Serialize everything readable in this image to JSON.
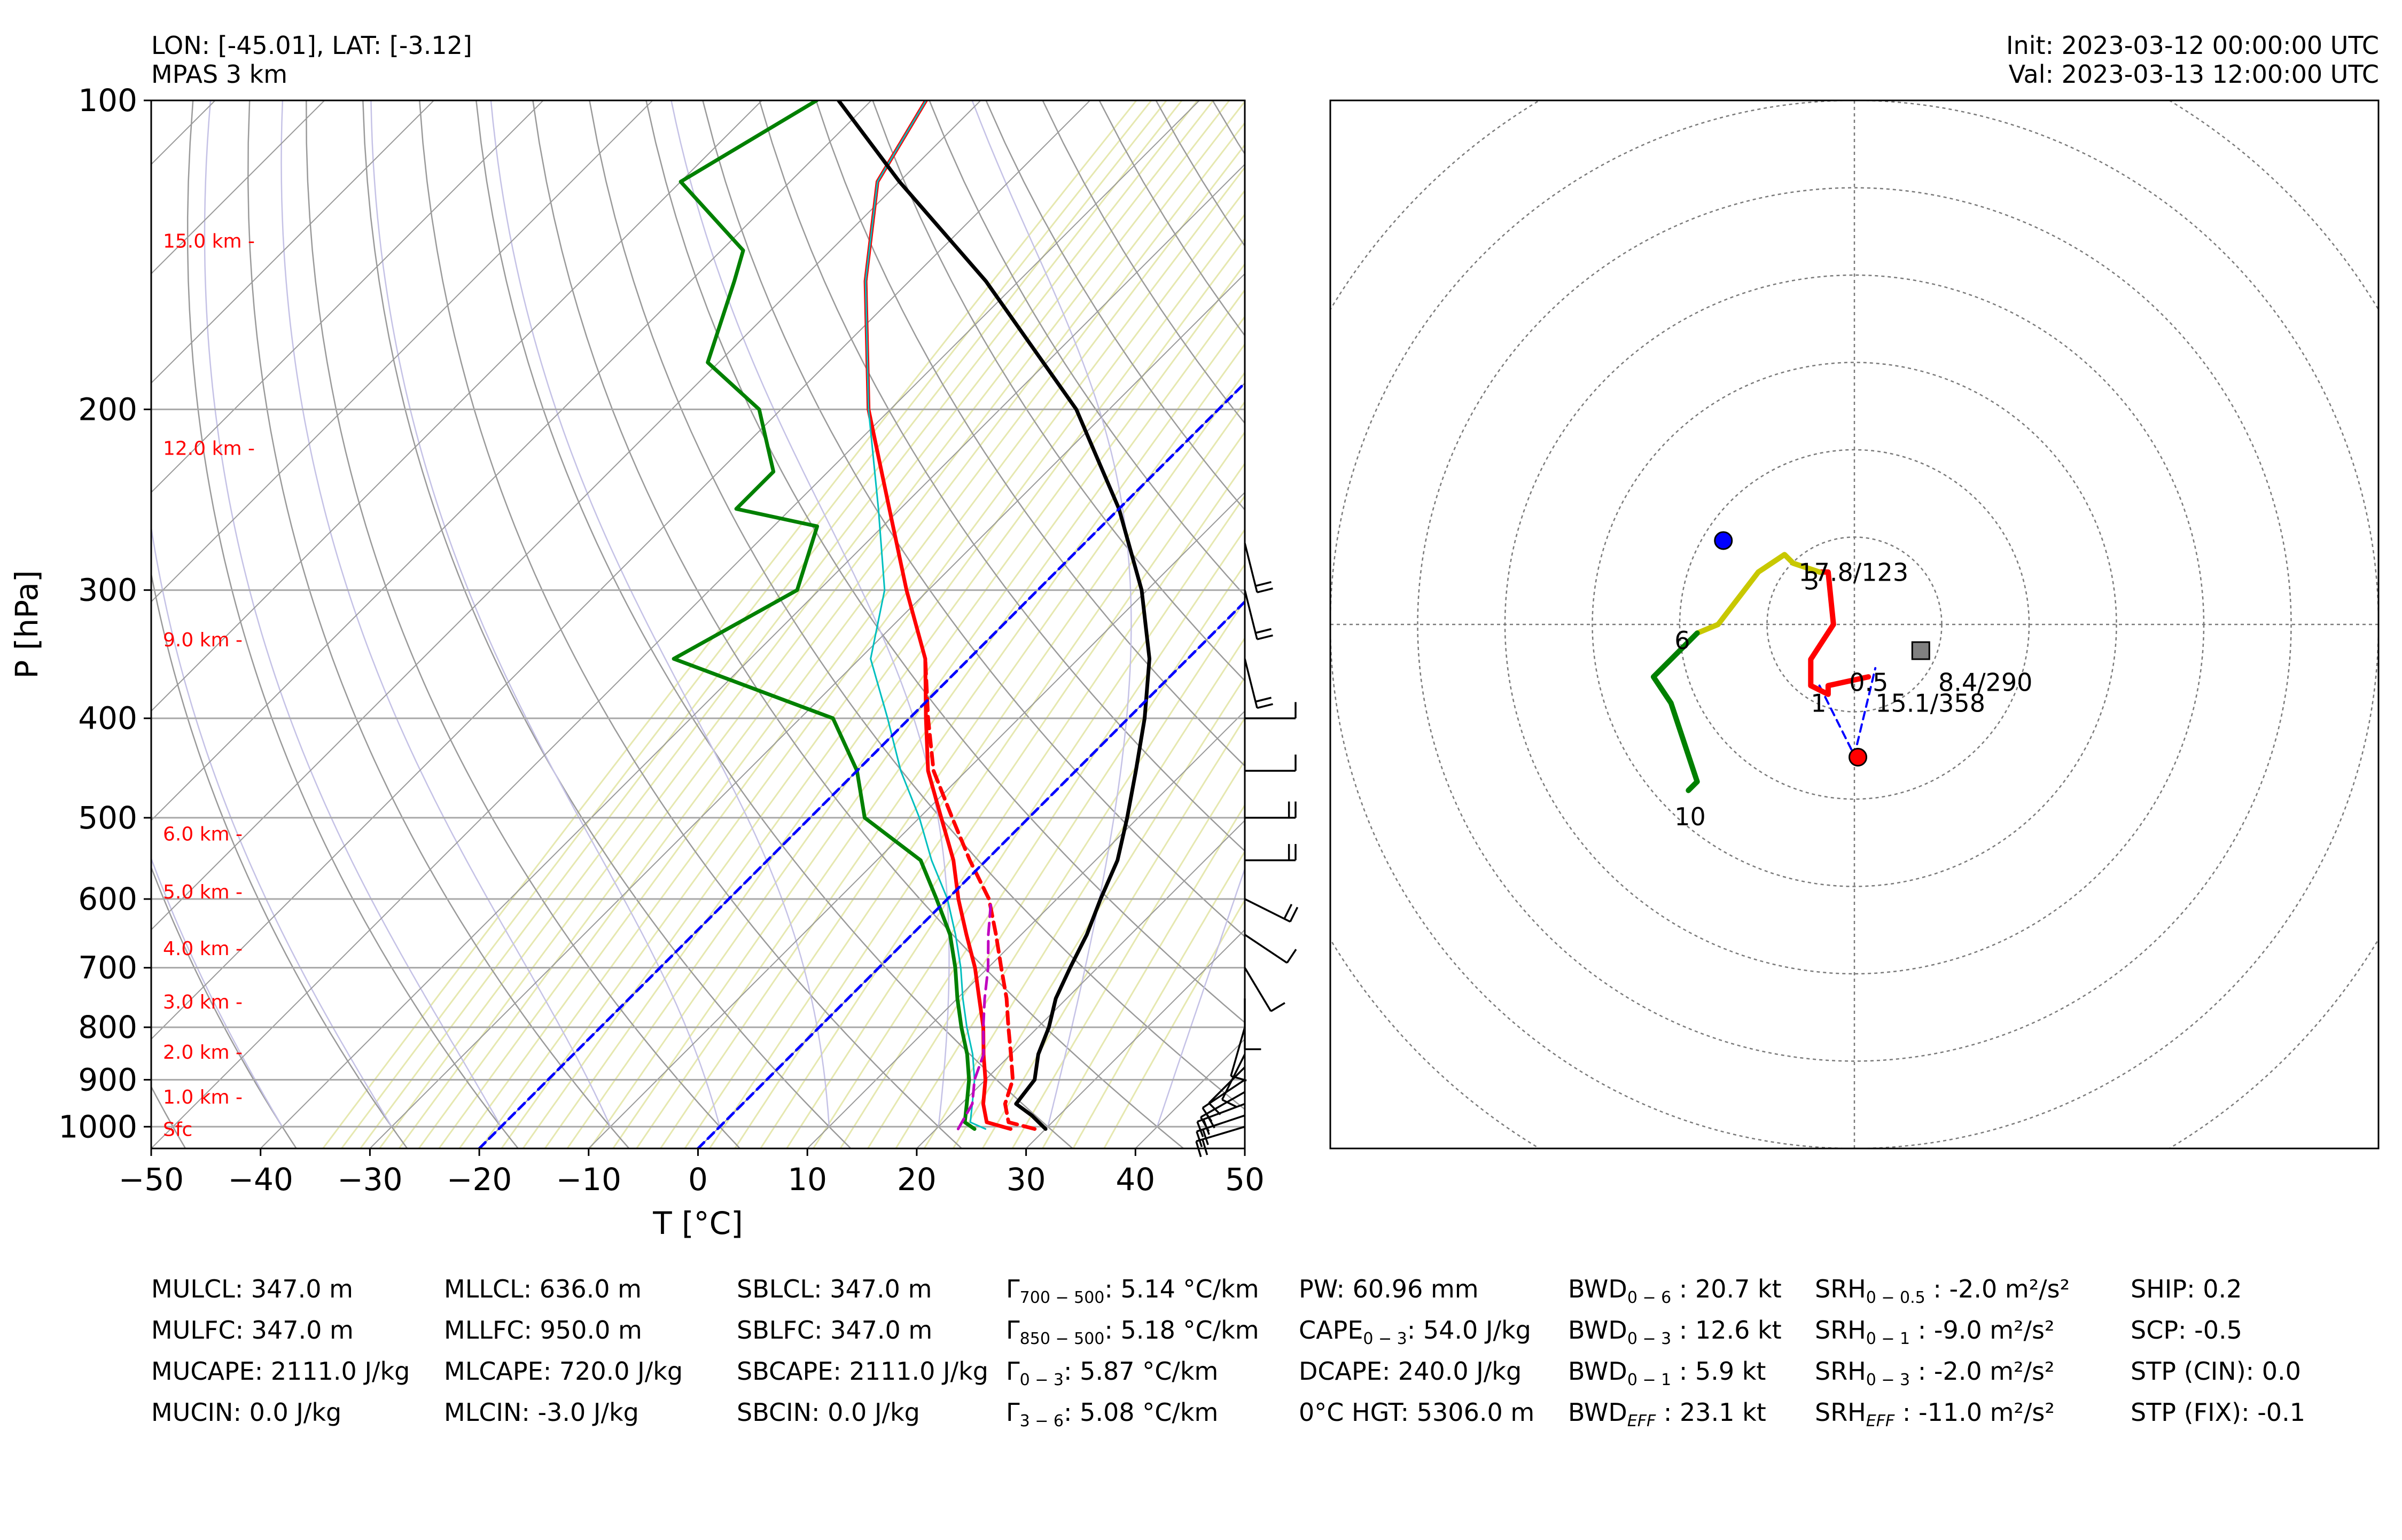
{
  "header": {
    "location": "LON: [-45.01], LAT: [-3.12]",
    "model": "MPAS 3 km",
    "init": "Init: 2023-03-12 00:00:00 UTC",
    "valid": "Val: 2023-03-13 12:00:00 UTC"
  },
  "chart_data": [
    {
      "type": "line",
      "subtype": "skew-T log-P",
      "xlabel": "T [°C]",
      "ylabel": "P [hPa]",
      "xlim": [
        -50,
        50
      ],
      "ylim": [
        1050,
        100
      ],
      "y_scale": "log",
      "x_ticks": [
        "−50",
        "−40",
        "−30",
        "−20",
        "−10",
        "0",
        "10",
        "20",
        "30",
        "40",
        "50"
      ],
      "y_ticks": [
        "100",
        "200",
        "300",
        "400",
        "500",
        "600",
        "700",
        "800",
        "900",
        "1000"
      ],
      "height_labels": [
        {
          "label": "15.0 km -",
          "p": 137
        },
        {
          "label": "12.0 km -",
          "p": 218
        },
        {
          "label": "9.0 km -",
          "p": 335
        },
        {
          "label": "6.0 km -",
          "p": 518
        },
        {
          "label": "5.0 km -",
          "p": 590
        },
        {
          "label": "4.0 km -",
          "p": 670
        },
        {
          "label": "3.0 km -",
          "p": 755
        },
        {
          "label": "2.0 km -",
          "p": 845
        },
        {
          "label": "1.0 km -",
          "p": 935
        },
        {
          "label": "Sfc",
          "p": 1005
        }
      ],
      "grid": true,
      "series": [
        {
          "key": "temperature",
          "color": "#ff0000",
          "points": [
            [
              26.8,
              1005
            ],
            [
              24,
              990
            ],
            [
              22,
              950
            ],
            [
              20,
              900
            ],
            [
              17.5,
              850
            ],
            [
              15,
              800
            ],
            [
              12,
              750
            ],
            [
              8.8,
              700
            ],
            [
              5,
              650
            ],
            [
              1,
              600
            ],
            [
              -3,
              550
            ],
            [
              -8,
              500
            ],
            [
              -13.5,
              450
            ],
            [
              -18.5,
              400
            ],
            [
              -24,
              350
            ],
            [
              -32,
              300
            ],
            [
              -41,
              250
            ],
            [
              -52,
              200
            ],
            [
              -64,
              150
            ],
            [
              -72,
              120
            ],
            [
              -75,
              100
            ]
          ]
        },
        {
          "key": "dewpoint",
          "color": "#008000",
          "points": [
            [
              23.5,
              1005
            ],
            [
              22,
              990
            ],
            [
              20.5,
              950
            ],
            [
              18.5,
              900
            ],
            [
              16,
              850
            ],
            [
              13,
              800
            ],
            [
              10,
              750
            ],
            [
              7,
              700
            ],
            [
              3.5,
              650
            ],
            [
              -1,
              600
            ],
            [
              -6,
              550
            ],
            [
              -15,
              500
            ],
            [
              -20,
              450
            ],
            [
              -27,
              400
            ],
            [
              -47,
              350
            ],
            [
              -42,
              300
            ],
            [
              -46,
              260
            ],
            [
              -55,
              250
            ],
            [
              -55,
              230
            ],
            [
              -62,
              200
            ],
            [
              -71,
              180
            ],
            [
              -76,
              150
            ],
            [
              -78,
              140
            ],
            [
              -90,
              120
            ],
            [
              -85,
              100
            ]
          ]
        },
        {
          "key": "virtual_temperature",
          "color": "#ff0000",
          "dashed": true,
          "points": [
            [
              29,
              1005
            ],
            [
              26,
              990
            ],
            [
              24,
              950
            ],
            [
              22.5,
              900
            ],
            [
              20,
              850
            ],
            [
              17.3,
              800
            ],
            [
              14.5,
              750
            ],
            [
              11.2,
              700
            ],
            [
              7.7,
              650
            ],
            [
              3.8,
              600
            ],
            [
              -1.5,
              550
            ],
            [
              -7,
              500
            ],
            [
              -13,
              450
            ],
            [
              -18.3,
              400
            ],
            [
              -24,
              350
            ]
          ]
        },
        {
          "key": "wetbulb",
          "color": "#00bfbf",
          "points": [
            [
              24.5,
              1005
            ],
            [
              22.5,
              990
            ],
            [
              21,
              950
            ],
            [
              19,
              900
            ],
            [
              16.5,
              850
            ],
            [
              13.5,
              800
            ],
            [
              10.5,
              750
            ],
            [
              7.5,
              700
            ],
            [
              4,
              650
            ],
            [
              0,
              600
            ],
            [
              -5,
              550
            ],
            [
              -10,
              500
            ],
            [
              -16,
              450
            ],
            [
              -22,
              400
            ],
            [
              -29,
              350
            ],
            [
              -34,
              300
            ],
            [
              -42,
              250
            ],
            [
              -52,
              200
            ],
            [
              -64,
              150
            ],
            [
              -72,
              120
            ],
            [
              -75,
              100
            ]
          ]
        },
        {
          "key": "dcape_parcel",
          "color": "#bf00bf",
          "dashed": true,
          "points": [
            [
              22,
              1005
            ],
            [
              21,
              950
            ],
            [
              19,
              900
            ],
            [
              17.5,
              850
            ],
            [
              15,
              800
            ],
            [
              12.5,
              750
            ],
            [
              10,
              700
            ],
            [
              7,
              650
            ],
            [
              4,
              600
            ]
          ]
        },
        {
          "key": "surface_parcel",
          "color": "#000000",
          "points": [
            [
              30,
              1005
            ],
            [
              27.5,
              975
            ],
            [
              25,
              950
            ],
            [
              24.5,
              900
            ],
            [
              22.5,
              850
            ],
            [
              21,
              800
            ],
            [
              19,
              750
            ],
            [
              17.5,
              700
            ],
            [
              16,
              650
            ],
            [
              14,
              600
            ],
            [
              12,
              550
            ],
            [
              9,
              500
            ],
            [
              5.5,
              450
            ],
            [
              1.5,
              400
            ],
            [
              -3.5,
              350
            ],
            [
              -10.5,
              300
            ],
            [
              -20,
              250
            ],
            [
              -33,
              200
            ],
            [
              -53,
              150
            ],
            [
              -70,
              120
            ],
            [
              -83,
              100
            ]
          ]
        },
        {
          "key": "isotherm_0C",
          "color": "#0000ff",
          "dashed": true,
          "isotherm": 0
        },
        {
          "key": "isotherm_m20C",
          "color": "#0000ff",
          "dashed": true,
          "isotherm": -20
        }
      ],
      "wind_barbs": [
        {
          "p": 1000,
          "u": -10,
          "v": 3
        },
        {
          "p": 975,
          "u": -9,
          "v": 3
        },
        {
          "p": 950,
          "u": -8,
          "v": 3
        },
        {
          "p": 925,
          "u": -7,
          "v": 4
        },
        {
          "p": 900,
          "u": -6,
          "v": 4
        },
        {
          "p": 875,
          "u": -5,
          "v": 5
        },
        {
          "p": 850,
          "u": -3,
          "v": 6
        },
        {
          "p": 800,
          "u": -2,
          "v": 7
        },
        {
          "p": 750,
          "u": 0,
          "v": 6
        },
        {
          "p": 700,
          "u": 3,
          "v": 5
        },
        {
          "p": 650,
          "u": 6,
          "v": 4
        },
        {
          "p": 600,
          "u": 8,
          "v": 4
        },
        {
          "p": 550,
          "u": 10,
          "v": 0
        },
        {
          "p": 500,
          "u": 10,
          "v": 0
        },
        {
          "p": 450,
          "u": 7,
          "v": 0
        },
        {
          "p": 400,
          "u": 7,
          "v": 0
        },
        {
          "p": 350,
          "u": 3,
          "v": 12
        },
        {
          "p": 300,
          "u": 3,
          "v": 12
        },
        {
          "p": 270,
          "u": 3,
          "v": 12
        }
      ]
    },
    {
      "type": "line",
      "subtype": "hodograph",
      "rings_kt": [
        10,
        20,
        30,
        40,
        50,
        60
      ],
      "range_kt": [
        -30,
        30
      ],
      "segments": [
        {
          "label": "0-3 km",
          "color": "#ff0000",
          "points": [
            [
              0.8,
              -3
            ],
            [
              -1.5,
              -3.5
            ],
            [
              -1.5,
              -4
            ],
            [
              -2.5,
              -3.5
            ],
            [
              -2.5,
              -2
            ],
            [
              -1.2,
              0
            ],
            [
              -1.5,
              3
            ],
            [
              -2,
              3
            ]
          ]
        },
        {
          "label": "3-6 km",
          "color": "#c8c800",
          "points": [
            [
              -2,
              3
            ],
            [
              -3.5,
              3.5
            ],
            [
              -4,
              4
            ],
            [
              -5.5,
              3
            ],
            [
              -7.8,
              0
            ],
            [
              -9,
              -0.5
            ]
          ]
        },
        {
          "label": "6-10 km",
          "color": "#008000",
          "points": [
            [
              -9,
              -0.5
            ],
            [
              -11.5,
              -3
            ],
            [
              -10.5,
              -4.5
            ],
            [
              -9,
              -9
            ],
            [
              -9.5,
              -9.5
            ]
          ]
        }
      ],
      "storm_motion_dashes": {
        "color": "#0000ff",
        "paths": [
          [
            [
              -2,
              -3.5
            ],
            [
              0,
              -7.5
            ],
            [
              1.2,
              -2.5
            ]
          ]
        ]
      },
      "markers": [
        {
          "shape": "circle",
          "color": "#0000ff",
          "u": -7.5,
          "v": 4.8
        },
        {
          "shape": "circle",
          "color": "#ff0000",
          "u": 0.2,
          "v": -7.6
        },
        {
          "shape": "square",
          "color": "#808080",
          "u": 3.8,
          "v": -1.5
        }
      ],
      "labels": [
        {
          "text": "17.8/123",
          "u": -3.2,
          "v": 2.5
        },
        {
          "text": "3",
          "u": -2.9,
          "v": 2
        },
        {
          "text": "6",
          "u": -10.3,
          "v": -1.4
        },
        {
          "text": "0.5",
          "u": -0.3,
          "v": -3.8
        },
        {
          "text": "8.4/290",
          "u": 4.8,
          "v": -3.8
        },
        {
          "text": "1",
          "u": -2.5,
          "v": -5
        },
        {
          "text": "15.1/358",
          "u": 1.2,
          "v": -5
        },
        {
          "text": "10",
          "u": -10.3,
          "v": -11.5
        }
      ]
    }
  ],
  "parameters": {
    "col1": [
      "MULCL: 347.0 m",
      "MULFC: 347.0 m",
      "MUCAPE: 2111.0 J/kg",
      "MUCIN: 0.0 J/kg"
    ],
    "col2": [
      "MLLCL: 636.0 m",
      "MLLFC: 950.0 m",
      "MLCAPE: 720.0 J/kg",
      "MLCIN: -3.0 J/kg"
    ],
    "col3": [
      "SBLCL: 347.0 m",
      "SBLFC: 347.0 m",
      "SBCAPE: 2111.0 J/kg",
      "SBCIN: 0.0 J/kg"
    ],
    "col4": [
      {
        "sym": "Γ",
        "sub": "700 − 500",
        "val": ": 5.14 °C/km"
      },
      {
        "sym": "Γ",
        "sub": "850 − 500",
        "val": ": 5.18 °C/km"
      },
      {
        "sym": "Γ",
        "sub": "0 − 3",
        "val": ": 5.87 °C/km"
      },
      {
        "sym": "Γ",
        "sub": "3 − 6",
        "val": ": 5.08 °C/km"
      }
    ],
    "col5": [
      {
        "sym": "PW",
        "sub": "",
        "val": ": 60.96 mm"
      },
      {
        "sym": "CAPE",
        "sub": "0 − 3",
        "val": ": 54.0 J/kg"
      },
      {
        "sym": "DCAPE",
        "sub": "",
        "val": ": 240.0 J/kg"
      },
      {
        "sym": "0°C HGT",
        "sub": "",
        "val": ": 5306.0 m"
      }
    ],
    "col6": [
      {
        "sym": "BWD",
        "sub": "0 − 6",
        "val": " : 20.7 kt"
      },
      {
        "sym": "BWD",
        "sub": "0 − 3",
        "val": " : 12.6 kt"
      },
      {
        "sym": "BWD",
        "sub": "0 − 1",
        "val": " : 5.9 kt"
      },
      {
        "sym": "BWD",
        "sub": "EFF",
        "val": " : 23.1 kt"
      }
    ],
    "col7": [
      {
        "sym": "SRH",
        "sub": "0 − 0.5",
        "val": " : -2.0 m²/s²"
      },
      {
        "sym": "SRH",
        "sub": "0 − 1",
        "val": " : -9.0 m²/s²"
      },
      {
        "sym": "SRH",
        "sub": "0 − 3",
        "val": " : -2.0 m²/s²"
      },
      {
        "sym": "SRH",
        "sub": "EFF",
        "val": " : -11.0 m²/s²"
      }
    ],
    "col8": [
      "SHIP: 0.2",
      "SCP: -0.5",
      "STP (CIN): 0.0",
      "STP (FIX): -0.1"
    ]
  }
}
